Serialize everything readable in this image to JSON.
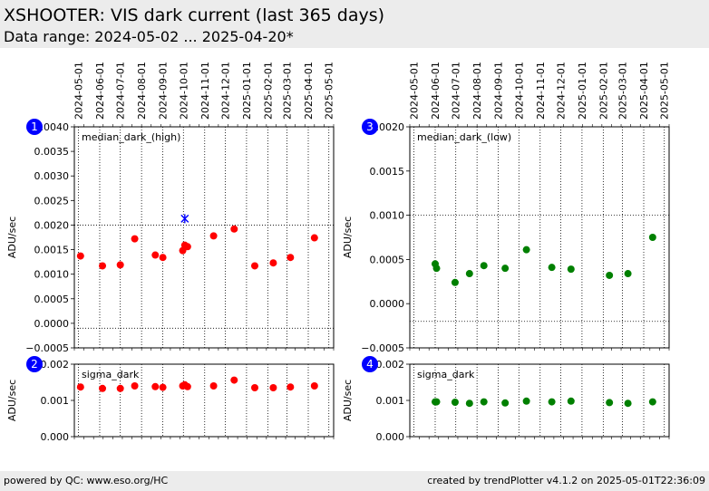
{
  "header": {
    "title": "XSHOOTER: VIS dark current (last 365 days)",
    "subtitle": "Data range: 2024-05-02 ... 2025-04-20*"
  },
  "footer": {
    "left": "powered by QC: www.eso.org/HC",
    "right": "created by trendPlotter v4.1.2 on 2025-05-01T22:36:09"
  },
  "date_ticks": [
    "2024-05-01",
    "2024-06-01",
    "2024-07-01",
    "2024-08-01",
    "2024-09-01",
    "2024-10-01",
    "2024-11-01",
    "2024-12-01",
    "2025-01-01",
    "2025-02-01",
    "2025-03-01",
    "2025-04-01",
    "2025-05-01"
  ],
  "colors": {
    "high": "#ff0000",
    "low": "#008000",
    "outlier": "#0000ff",
    "badge": "#0000ff"
  },
  "chart_data": [
    {
      "type": "scatter",
      "badge": "1",
      "label": "median_dark_(high)",
      "ylabel": "ADU/sec",
      "ylim": [
        -0.0005,
        0.004
      ],
      "yticks": [
        -0.0005,
        0,
        0.0005,
        0.001,
        0.0015,
        0.002,
        0.0025,
        0.003,
        0.0035,
        0.004
      ],
      "ytick_labels": [
        "−0.0005",
        "0.0000",
        "0.0005",
        "0.0010",
        "0.0015",
        "0.0020",
        "0.0025",
        "0.0030",
        "0.0035",
        "0.0040"
      ],
      "reference_lines": [
        0.002,
        -0.0001
      ],
      "color": "#ff0000",
      "points": [
        {
          "x": "2024-05-04",
          "y": 0.00137
        },
        {
          "x": "2024-06-05",
          "y": 0.00117
        },
        {
          "x": "2024-07-01",
          "y": 0.00119
        },
        {
          "x": "2024-07-22",
          "y": 0.00172
        },
        {
          "x": "2024-08-21",
          "y": 0.00139
        },
        {
          "x": "2024-09-01",
          "y": 0.00134
        },
        {
          "x": "2024-09-30",
          "y": 0.00148
        },
        {
          "x": "2024-10-03",
          "y": 0.00159
        },
        {
          "x": "2024-10-07",
          "y": 0.00156
        },
        {
          "x": "2024-11-14",
          "y": 0.00178
        },
        {
          "x": "2024-12-14",
          "y": 0.00192
        },
        {
          "x": "2025-01-13",
          "y": 0.00117
        },
        {
          "x": "2025-02-09",
          "y": 0.00123
        },
        {
          "x": "2025-03-06",
          "y": 0.00134
        },
        {
          "x": "2025-04-10",
          "y": 0.00174
        }
      ],
      "outliers": [
        {
          "x": "2024-10-03",
          "y": 0.00213
        }
      ]
    },
    {
      "type": "scatter",
      "badge": "2",
      "label": "sigma_dark",
      "ylabel": "ADU/sec",
      "ylim": [
        0,
        0.002
      ],
      "yticks": [
        0,
        0.001,
        0.002
      ],
      "ytick_labels": [
        "0.000",
        "0.001",
        "0.002"
      ],
      "reference_lines": [],
      "color": "#ff0000",
      "points": [
        {
          "x": "2024-05-04",
          "y": 0.00137
        },
        {
          "x": "2024-06-05",
          "y": 0.00133
        },
        {
          "x": "2024-07-01",
          "y": 0.00133
        },
        {
          "x": "2024-07-22",
          "y": 0.0014
        },
        {
          "x": "2024-08-21",
          "y": 0.00138
        },
        {
          "x": "2024-09-01",
          "y": 0.00136
        },
        {
          "x": "2024-09-30",
          "y": 0.0014
        },
        {
          "x": "2024-10-03",
          "y": 0.00143
        },
        {
          "x": "2024-10-07",
          "y": 0.00138
        },
        {
          "x": "2024-11-14",
          "y": 0.0014
        },
        {
          "x": "2024-12-14",
          "y": 0.00156
        },
        {
          "x": "2025-01-13",
          "y": 0.00135
        },
        {
          "x": "2025-02-09",
          "y": 0.00135
        },
        {
          "x": "2025-03-06",
          "y": 0.00137
        },
        {
          "x": "2025-04-10",
          "y": 0.0014
        }
      ],
      "outliers": []
    },
    {
      "type": "scatter",
      "badge": "3",
      "label": "median_dark_(low)",
      "ylabel": "ADU/sec",
      "ylim": [
        -0.0005,
        0.002
      ],
      "yticks": [
        -0.0005,
        0,
        0.0005,
        0.001,
        0.0015,
        0.002
      ],
      "ytick_labels": [
        "−0.0005",
        "0.0000",
        "0.0005",
        "0.0010",
        "0.0015",
        "0.0020"
      ],
      "reference_lines": [
        0.001,
        -0.0002
      ],
      "color": "#008000",
      "points": [
        {
          "x": "2024-06-01",
          "y": 0.00045
        },
        {
          "x": "2024-06-03",
          "y": 0.0004
        },
        {
          "x": "2024-06-30",
          "y": 0.00024
        },
        {
          "x": "2024-07-21",
          "y": 0.00034
        },
        {
          "x": "2024-08-11",
          "y": 0.00043
        },
        {
          "x": "2024-09-11",
          "y": 0.0004
        },
        {
          "x": "2024-10-12",
          "y": 0.00061
        },
        {
          "x": "2024-11-18",
          "y": 0.00041
        },
        {
          "x": "2024-12-16",
          "y": 0.00039
        },
        {
          "x": "2025-02-10",
          "y": 0.00032
        },
        {
          "x": "2025-03-09",
          "y": 0.00034
        },
        {
          "x": "2025-04-14",
          "y": 0.00075
        }
      ],
      "outliers": []
    },
    {
      "type": "scatter",
      "badge": "4",
      "label": "sigma_dark",
      "ylabel": "ADU/sec",
      "ylim": [
        0,
        0.002
      ],
      "yticks": [
        0,
        0.001,
        0.002
      ],
      "ytick_labels": [
        "0.000",
        "0.001",
        "0.002"
      ],
      "reference_lines": [],
      "color": "#008000",
      "points": [
        {
          "x": "2024-06-01",
          "y": 0.00096
        },
        {
          "x": "2024-06-03",
          "y": 0.00096
        },
        {
          "x": "2024-06-30",
          "y": 0.00095
        },
        {
          "x": "2024-07-21",
          "y": 0.00092
        },
        {
          "x": "2024-08-11",
          "y": 0.00096
        },
        {
          "x": "2024-09-11",
          "y": 0.00093
        },
        {
          "x": "2024-10-12",
          "y": 0.00098
        },
        {
          "x": "2024-11-18",
          "y": 0.00096
        },
        {
          "x": "2024-12-16",
          "y": 0.00098
        },
        {
          "x": "2025-02-10",
          "y": 0.00094
        },
        {
          "x": "2025-03-09",
          "y": 0.00092
        },
        {
          "x": "2025-04-14",
          "y": 0.00096
        }
      ],
      "outliers": []
    }
  ]
}
